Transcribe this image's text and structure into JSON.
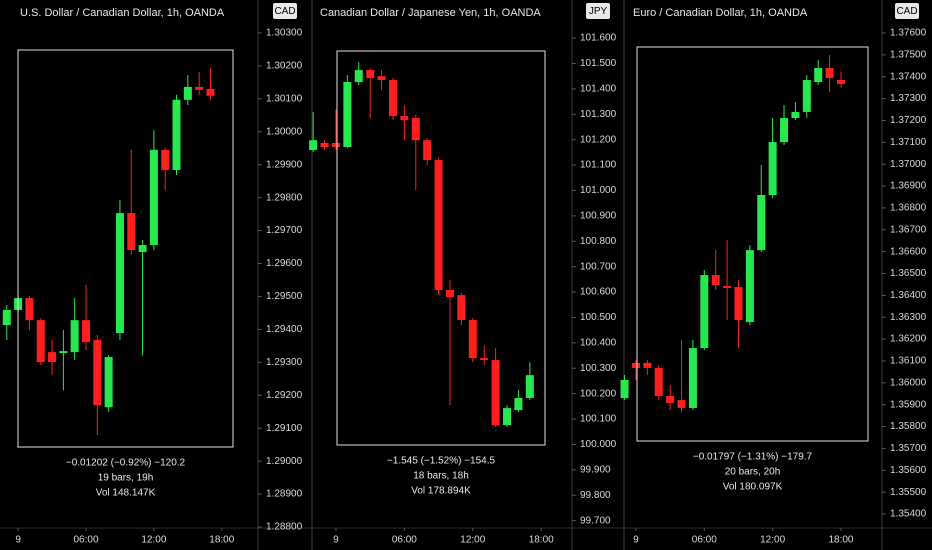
{
  "chart_data": [
    {
      "type": "candlestick",
      "title": "U.S. Dollar / Canadian Dollar, 1h, OANDA",
      "currency_label": "CAD",
      "x": [
        -1,
        0,
        1,
        2,
        3,
        4,
        5,
        6,
        7,
        8,
        9,
        10,
        11,
        12,
        13,
        14,
        15,
        16,
        17
      ],
      "open": [
        1.29413,
        1.29459,
        1.29495,
        1.29428,
        1.29331,
        1.29328,
        1.29331,
        1.29428,
        1.29368,
        1.29164,
        1.29389,
        1.29753,
        1.29635,
        1.29656,
        1.29945,
        1.29884,
        1.30097,
        1.30136,
        1.3013
      ],
      "high": [
        1.29474,
        1.29504,
        1.29501,
        1.29434,
        1.29368,
        1.29398,
        1.29495,
        1.29535,
        1.29383,
        1.29322,
        1.29793,
        1.29945,
        1.29671,
        1.30005,
        1.29951,
        1.30112,
        1.30172,
        1.30182,
        1.30194
      ],
      "low": [
        1.29368,
        1.29453,
        1.29398,
        1.29291,
        1.29261,
        1.29215,
        1.29307,
        1.29337,
        1.29079,
        1.29149,
        1.29368,
        1.29626,
        1.29322,
        1.29641,
        1.29823,
        1.29869,
        1.30081,
        1.30112,
        1.30097
      ],
      "close": [
        1.29459,
        1.29495,
        1.29428,
        1.29301,
        1.29301,
        1.29334,
        1.29428,
        1.29362,
        1.2917,
        1.29316,
        1.29753,
        1.29641,
        1.29656,
        1.29945,
        1.29884,
        1.30097,
        1.30136,
        1.30127,
        1.30109
      ],
      "up_color": "#27e84f",
      "down_color": "#ff1f1f",
      "xlim": [
        -1.6,
        21.2
      ],
      "xticks": [
        {
          "value": 0,
          "label": "9"
        },
        {
          "value": 6,
          "label": "06:00"
        },
        {
          "value": 12,
          "label": "12:00"
        },
        {
          "value": 18,
          "label": "18:00"
        }
      ],
      "ylim": [
        1.28797,
        1.304
      ],
      "yticks": [
        {
          "value": 1.303,
          "label": "1.30300"
        },
        {
          "value": 1.302,
          "label": "1.30200"
        },
        {
          "value": 1.301,
          "label": "1.30100"
        },
        {
          "value": 1.3,
          "label": "1.30000"
        },
        {
          "value": 1.299,
          "label": "1.29900"
        },
        {
          "value": 1.298,
          "label": "1.29800"
        },
        {
          "value": 1.297,
          "label": "1.29700"
        },
        {
          "value": 1.296,
          "label": "1.29600"
        },
        {
          "value": 1.295,
          "label": "1.29500"
        },
        {
          "value": 1.294,
          "label": "1.29400"
        },
        {
          "value": 1.293,
          "label": "1.29300"
        },
        {
          "value": 1.292,
          "label": "1.29200"
        },
        {
          "value": 1.291,
          "label": "1.29100"
        },
        {
          "value": 1.29,
          "label": "1.29000"
        },
        {
          "value": 1.289,
          "label": "1.28900"
        },
        {
          "value": 1.288,
          "label": "1.28800"
        }
      ],
      "annotations": [
        "−0.01202 (−0.92%) −120.2",
        "19 bars, 19h",
        "Vol 148.147K"
      ]
    },
    {
      "type": "candlestick",
      "title": "Canadian Dollar / Japanese Yen, 1h, OANDA",
      "currency_label": "JPY",
      "x": [
        -2,
        -1,
        0,
        1,
        2,
        3,
        4,
        5,
        6,
        7,
        8,
        9,
        10,
        11,
        12,
        13,
        14,
        15,
        16,
        17
      ],
      "open": [
        101.159,
        101.187,
        101.187,
        101.171,
        101.427,
        101.474,
        101.45,
        101.435,
        101.293,
        101.285,
        101.198,
        101.12,
        100.608,
        100.588,
        100.49,
        100.34,
        100.332,
        100.076,
        100.135,
        100.183
      ],
      "high": [
        101.309,
        101.198,
        101.317,
        101.454,
        101.506,
        101.482,
        101.474,
        101.443,
        101.336,
        101.297,
        101.206,
        101.128,
        100.647,
        100.596,
        100.498,
        100.391,
        100.38,
        100.155,
        100.214,
        100.324
      ],
      "low": [
        101.151,
        101.159,
        101.159,
        101.167,
        101.415,
        101.285,
        101.395,
        101.277,
        101.198,
        101.002,
        101.1,
        100.588,
        100.155,
        100.47,
        100.324,
        100.313,
        100.069,
        100.069,
        100.128,
        100.175
      ],
      "close": [
        101.198,
        101.171,
        101.171,
        101.427,
        101.474,
        101.443,
        101.435,
        101.293,
        101.277,
        101.198,
        101.12,
        100.608,
        100.58,
        100.49,
        100.34,
        100.332,
        100.076,
        100.143,
        100.183,
        100.273
      ],
      "up_color": "#27e84f",
      "down_color": "#ff1f1f",
      "xlim": [
        -2.1,
        20.7
      ],
      "xticks": [
        {
          "value": 0,
          "label": "9"
        },
        {
          "value": 6,
          "label": "06:00"
        },
        {
          "value": 12,
          "label": "12:00"
        },
        {
          "value": 18,
          "label": "18:00"
        }
      ],
      "ylim": [
        99.671,
        101.75
      ],
      "yticks": [
        {
          "value": 101.6,
          "label": "101.600"
        },
        {
          "value": 101.5,
          "label": "101.500"
        },
        {
          "value": 101.4,
          "label": "101.400"
        },
        {
          "value": 101.3,
          "label": "101.300"
        },
        {
          "value": 101.2,
          "label": "101.200"
        },
        {
          "value": 101.1,
          "label": "101.100"
        },
        {
          "value": 101,
          "label": "101.000"
        },
        {
          "value": 100.9,
          "label": "100.900"
        },
        {
          "value": 100.8,
          "label": "100.800"
        },
        {
          "value": 100.7,
          "label": "100.700"
        },
        {
          "value": 100.6,
          "label": "100.600"
        },
        {
          "value": 100.5,
          "label": "100.500"
        },
        {
          "value": 100.4,
          "label": "100.400"
        },
        {
          "value": 100.3,
          "label": "100.300"
        },
        {
          "value": 100.2,
          "label": "100.200"
        },
        {
          "value": 100.1,
          "label": "100.100"
        },
        {
          "value": 100,
          "label": "100.000"
        },
        {
          "value": 99.9,
          "label": "99.900"
        },
        {
          "value": 99.8,
          "label": "99.800"
        },
        {
          "value": 99.7,
          "label": "99.700"
        }
      ],
      "annotations": [
        "−1.545 (−1.52%) −154.5",
        "18 bars, 18h",
        "Vol 178.894K"
      ]
    },
    {
      "type": "candlestick",
      "title": "Euro / Canadian Dollar, 1h, OANDA",
      "currency_label": "CAD",
      "x": [
        -1,
        0,
        1,
        2,
        3,
        4,
        5,
        6,
        7,
        8,
        9,
        10,
        11,
        12,
        13,
        14,
        15,
        16,
        17,
        18
      ],
      "open": [
        1.3593,
        1.36091,
        1.36091,
        1.36068,
        1.3594,
        1.35921,
        1.35885,
        1.36159,
        1.36493,
        1.36443,
        1.36438,
        1.36278,
        1.36607,
        1.36859,
        1.37101,
        1.37211,
        1.37239,
        1.37376,
        1.3744,
        1.37385
      ],
      "high": [
        1.36036,
        1.36104,
        1.36104,
        1.36082,
        1.3599,
        1.36196,
        1.36196,
        1.36516,
        1.36607,
        1.36653,
        1.3647,
        1.3663,
        1.36996,
        1.37211,
        1.37271,
        1.37284,
        1.37408,
        1.37477,
        1.37499,
        1.37422
      ],
      "low": [
        1.35921,
        1.36013,
        1.36036,
        1.35921,
        1.35876,
        1.35866,
        1.35876,
        1.3615,
        1.36425,
        1.36287,
        1.36159,
        1.36264,
        1.36598,
        1.36845,
        1.37088,
        1.37202,
        1.37211,
        1.37362,
        1.3733,
        1.37348
      ],
      "close": [
        1.36013,
        1.36068,
        1.36068,
        1.3594,
        1.35908,
        1.35885,
        1.36159,
        1.36493,
        1.36447,
        1.36434,
        1.36287,
        1.36607,
        1.36859,
        1.37101,
        1.37211,
        1.37239,
        1.37385,
        1.3744,
        1.37394,
        1.37367
      ],
      "up_color": "#27e84f",
      "down_color": "#ff1f1f",
      "xlim": [
        -1.05,
        21.6
      ],
      "xticks": [
        {
          "value": 0,
          "label": "9"
        },
        {
          "value": 6,
          "label": "06:00"
        },
        {
          "value": 12,
          "label": "12:00"
        },
        {
          "value": 18,
          "label": "18:00"
        }
      ],
      "ylim": [
        1.35336,
        1.37751
      ],
      "yticks": [
        {
          "value": 1.376,
          "label": "1.37600"
        },
        {
          "value": 1.375,
          "label": "1.37500"
        },
        {
          "value": 1.374,
          "label": "1.37400"
        },
        {
          "value": 1.373,
          "label": "1.37300"
        },
        {
          "value": 1.372,
          "label": "1.37200"
        },
        {
          "value": 1.371,
          "label": "1.37100"
        },
        {
          "value": 1.37,
          "label": "1.37000"
        },
        {
          "value": 1.369,
          "label": "1.36900"
        },
        {
          "value": 1.368,
          "label": "1.36800"
        },
        {
          "value": 1.367,
          "label": "1.36700"
        },
        {
          "value": 1.366,
          "label": "1.36600"
        },
        {
          "value": 1.365,
          "label": "1.36500"
        },
        {
          "value": 1.364,
          "label": "1.36400"
        },
        {
          "value": 1.363,
          "label": "1.36300"
        },
        {
          "value": 1.362,
          "label": "1.36200"
        },
        {
          "value": 1.361,
          "label": "1.36100"
        },
        {
          "value": 1.36,
          "label": "1.36000"
        },
        {
          "value": 1.359,
          "label": "1.35900"
        },
        {
          "value": 1.358,
          "label": "1.35800"
        },
        {
          "value": 1.357,
          "label": "1.35700"
        },
        {
          "value": 1.356,
          "label": "1.35600"
        },
        {
          "value": 1.355,
          "label": "1.35500"
        },
        {
          "value": 1.354,
          "label": "1.35400"
        }
      ],
      "annotations": [
        "−0.01797 (−1.31%) −179.7",
        "20 bars, 20h",
        "Vol 180.097K"
      ]
    }
  ]
}
